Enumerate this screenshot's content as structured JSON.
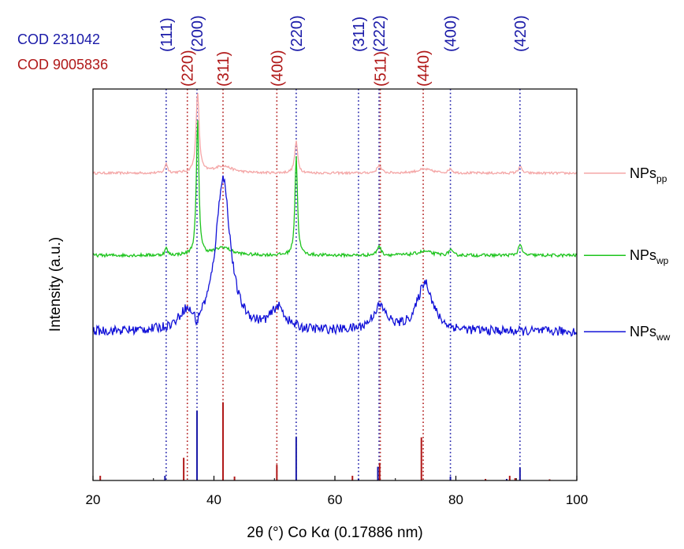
{
  "chart_data": {
    "type": "line",
    "xlabel": "2θ (°) Co Kα (0.17886 nm)",
    "ylabel": "Intensity (a.u.)",
    "xlim": [
      20,
      100
    ],
    "xticks": [
      20,
      40,
      60,
      80,
      100
    ],
    "colors": {
      "ref_blue": "#1a1aa8",
      "ref_red": "#b01818",
      "pp": "#f4a6a6",
      "wp": "#1ec41e",
      "ww": "#1212d8"
    },
    "references": [
      {
        "name": "COD 231042",
        "color": "#1a1aa8"
      },
      {
        "name": "COD 9005836",
        "color": "#b01818"
      }
    ],
    "reflections": [
      {
        "hkl": "(111)",
        "x": 32.1,
        "ref": 0,
        "row": 0
      },
      {
        "hkl": "(200)",
        "x": 37.2,
        "ref": 0,
        "row": 0
      },
      {
        "hkl": "(220)",
        "x": 53.6,
        "ref": 0,
        "row": 0
      },
      {
        "hkl": "(311)",
        "x": 63.9,
        "ref": 0,
        "row": 0
      },
      {
        "hkl": "(222)",
        "x": 67.3,
        "ref": 0,
        "row": 0
      },
      {
        "hkl": "(400)",
        "x": 79.1,
        "ref": 0,
        "row": 0
      },
      {
        "hkl": "(420)",
        "x": 90.6,
        "ref": 0,
        "row": 0
      },
      {
        "hkl": "(220)",
        "x": 35.6,
        "ref": 1,
        "row": 1
      },
      {
        "hkl": "(311)",
        "x": 41.5,
        "ref": 1,
        "row": 1
      },
      {
        "hkl": "(400)",
        "x": 50.4,
        "ref": 1,
        "row": 1
      },
      {
        "hkl": "(511)",
        "x": 67.5,
        "ref": 1,
        "row": 1
      },
      {
        "hkl": "(440)",
        "x": 74.6,
        "ref": 1,
        "row": 1
      }
    ],
    "series": [
      {
        "name": "NPs",
        "subscript": "pp",
        "color": "#f4a6a6",
        "baseline": 0.785,
        "noise": 0.003,
        "peaks": [
          {
            "x": 32.1,
            "h": 0.025,
            "w": 0.25
          },
          {
            "x": 37.3,
            "h": 0.205,
            "w": 0.3
          },
          {
            "x": 41.5,
            "h": 0.018,
            "w": 1.8
          },
          {
            "x": 53.6,
            "h": 0.08,
            "w": 0.3
          },
          {
            "x": 67.3,
            "h": 0.02,
            "w": 0.4
          },
          {
            "x": 74.8,
            "h": 0.01,
            "w": 1.5
          },
          {
            "x": 79.1,
            "h": 0.012,
            "w": 0.3
          },
          {
            "x": 90.6,
            "h": 0.018,
            "w": 0.3
          }
        ]
      },
      {
        "name": "NPs",
        "subscript": "wp",
        "color": "#1ec41e",
        "baseline": 0.575,
        "noise": 0.004,
        "peaks": [
          {
            "x": 32.1,
            "h": 0.018,
            "w": 0.25
          },
          {
            "x": 37.3,
            "h": 0.345,
            "w": 0.25
          },
          {
            "x": 41.5,
            "h": 0.02,
            "w": 1.6
          },
          {
            "x": 53.6,
            "h": 0.255,
            "w": 0.25
          },
          {
            "x": 67.3,
            "h": 0.025,
            "w": 0.35
          },
          {
            "x": 74.8,
            "h": 0.01,
            "w": 1.5
          },
          {
            "x": 79.1,
            "h": 0.015,
            "w": 0.3
          },
          {
            "x": 90.6,
            "h": 0.03,
            "w": 0.3
          }
        ]
      },
      {
        "name": "NPs",
        "subscript": "ww",
        "color": "#1212d8",
        "baseline": 0.38,
        "noise": 0.012,
        "peaks": [
          {
            "x": 35.3,
            "h": 0.04,
            "w": 1.3
          },
          {
            "x": 41.5,
            "h": 0.39,
            "w": 1.45
          },
          {
            "x": 50.6,
            "h": 0.055,
            "w": 1.4
          },
          {
            "x": 67.4,
            "h": 0.06,
            "w": 1.4
          },
          {
            "x": 74.9,
            "h": 0.125,
            "w": 1.5
          },
          {
            "x": 37.2,
            "h": -0.03,
            "w": 0.3
          }
        ]
      }
    ],
    "reference_bars": [
      {
        "x": 21.2,
        "h": 0.012,
        "ref": 1
      },
      {
        "x": 31.9,
        "h": 0.012,
        "ref": 0
      },
      {
        "x": 35.0,
        "h": 0.058,
        "ref": 1
      },
      {
        "x": 37.2,
        "h": 0.177,
        "ref": 0
      },
      {
        "x": 41.5,
        "h": 0.2,
        "ref": 1
      },
      {
        "x": 43.4,
        "h": 0.01,
        "ref": 1
      },
      {
        "x": 50.4,
        "h": 0.04,
        "ref": 1
      },
      {
        "x": 53.6,
        "h": 0.112,
        "ref": 0
      },
      {
        "x": 62.9,
        "h": 0.012,
        "ref": 1
      },
      {
        "x": 63.9,
        "h": 0.004,
        "ref": 0
      },
      {
        "x": 67.1,
        "h": 0.035,
        "ref": 0
      },
      {
        "x": 67.4,
        "h": 0.045,
        "ref": 1
      },
      {
        "x": 74.3,
        "h": 0.11,
        "ref": 1
      },
      {
        "x": 79.1,
        "h": 0.01,
        "ref": 0
      },
      {
        "x": 84.9,
        "h": 0.004,
        "ref": 1
      },
      {
        "x": 88.4,
        "h": 0.004,
        "ref": 0
      },
      {
        "x": 88.9,
        "h": 0.012,
        "ref": 1
      },
      {
        "x": 89.8,
        "h": 0.006,
        "ref": 1
      },
      {
        "x": 90.6,
        "h": 0.032,
        "ref": 0
      },
      {
        "x": 95.5,
        "h": 0.003,
        "ref": 1
      }
    ]
  }
}
